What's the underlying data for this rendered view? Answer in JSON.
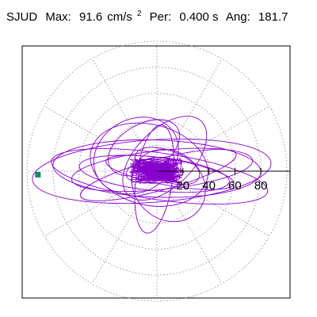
{
  "header": {
    "station": "SJUD",
    "max_label": "Max:",
    "max_value": "91.6",
    "max_unit": "cm/s",
    "max_unit_exp": "2",
    "per_label": "Per:",
    "per_value": "0.400 s",
    "ang_label": "Ang:",
    "ang_value": "181.7"
  },
  "chart_data": {
    "type": "polar-orbit",
    "title": "SJUD Max: 91.6 cm/s² Per: 0.400 s Ang: 181.7",
    "max_amplitude": 91.6,
    "angle_deg": 181.7,
    "radial_ticks": [
      20,
      40,
      60,
      80
    ],
    "radial_tick_labels": [
      "20",
      "40",
      "60",
      "80"
    ],
    "radial_max": 100,
    "angular_grid_step_deg": 30,
    "grid": true,
    "grid_style": "dotted",
    "trace_color": "#8800cc",
    "marker_color": "#009060",
    "marker_position": {
      "amplitude": 91.6,
      "angle_deg": 181.7
    },
    "orbits": [
      {
        "rx": 92,
        "ry": 24,
        "rot": -4,
        "cx": -4,
        "cy": 0
      },
      {
        "rx": 80,
        "ry": 22,
        "rot": 2,
        "cx": 0,
        "cy": 2
      },
      {
        "rx": 70,
        "ry": 15,
        "rot": -6,
        "cx": 4,
        "cy": 1
      },
      {
        "rx": 58,
        "ry": 13,
        "rot": 6,
        "cx": -2,
        "cy": -2
      },
      {
        "rx": 46,
        "ry": 31,
        "rot": 14,
        "cx": -6,
        "cy": 5
      },
      {
        "rx": 62,
        "ry": 12,
        "rot": -15,
        "cx": 1,
        "cy": -3
      },
      {
        "rx": 30,
        "ry": 26,
        "rot": 42,
        "cx": 9,
        "cy": -11
      },
      {
        "rx": 34,
        "ry": 28,
        "rot": -30,
        "cx": -16,
        "cy": 12
      },
      {
        "rx": 14,
        "ry": 42,
        "rot": 8,
        "cx": -2,
        "cy": -6
      },
      {
        "rx": 26,
        "ry": 12,
        "rot": 20,
        "cx": 8,
        "cy": 4
      },
      {
        "rx": 50,
        "ry": 10,
        "rot": 10,
        "cx": 10,
        "cy": -1
      },
      {
        "rx": 20,
        "ry": 9,
        "rot": -12,
        "cx": -4,
        "cy": 1
      },
      {
        "rx": 84,
        "ry": 18,
        "rot": 8,
        "cx": 2,
        "cy": -4
      },
      {
        "rx": 40,
        "ry": 22,
        "rot": -45,
        "cx": 6,
        "cy": 10
      },
      {
        "rx": 18,
        "ry": 30,
        "rot": 60,
        "cx": -10,
        "cy": 18
      }
    ],
    "scribble_ranges": [
      {
        "rx": 16,
        "ry": 8
      },
      {
        "rx": 11,
        "ry": 6
      },
      {
        "rx": 21,
        "ry": 10
      },
      {
        "rx": 8,
        "ry": 5
      }
    ]
  }
}
